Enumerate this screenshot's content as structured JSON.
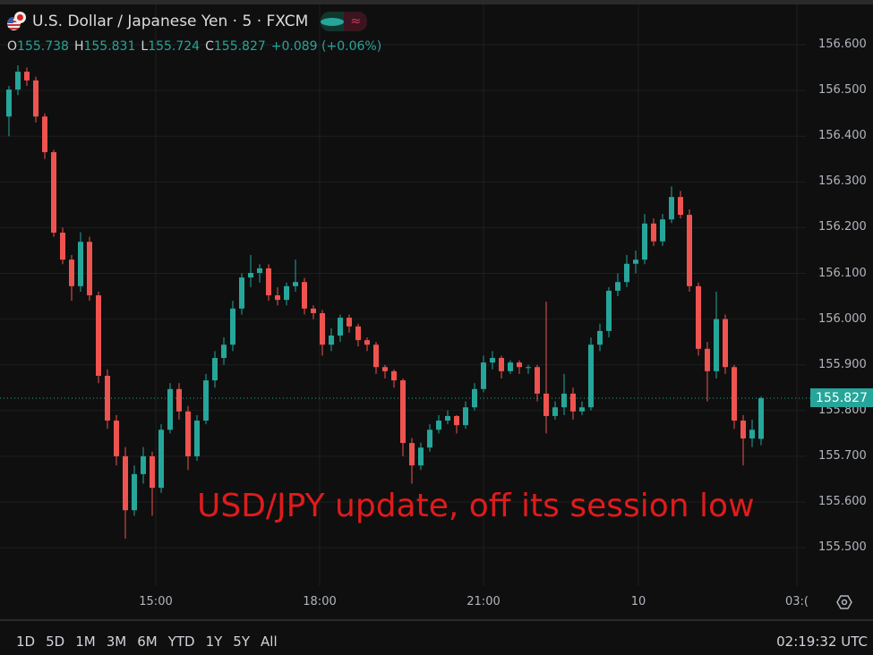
{
  "header": {
    "title": "U.S. Dollar / Japanese Yen · 5 · FXCM",
    "open_label": "O",
    "open": "155.738",
    "high_label": "H",
    "high": "155.831",
    "low_label": "L",
    "low": "155.724",
    "close_label": "C",
    "close": "155.827",
    "change": "+0.089 (+0.06%)"
  },
  "annotation": "USD/JPY update, off its session low",
  "last_price": "155.827",
  "colors": {
    "bull": "#26a69a",
    "bear": "#ef5350",
    "background": "#0f0f0f",
    "annotation": "#e01b1b"
  },
  "toolbar": {
    "ranges": [
      "1D",
      "5D",
      "1M",
      "3M",
      "6M",
      "YTD",
      "1Y",
      "5Y",
      "All"
    ],
    "clock": "02:19:32 UTC"
  },
  "icons": [
    "settings-gear-icon",
    "market-open-dot-icon",
    "data-delay-icon",
    "currency-flag-icon"
  ],
  "chart_data": {
    "type": "candlestick",
    "title": "U.S. Dollar / Japanese Yen · 5 · FXCM",
    "y_ticks": [
      "156.600",
      "156.500",
      "156.400",
      "156.300",
      "156.200",
      "156.100",
      "156.000",
      "155.900",
      "155.800",
      "155.700",
      "155.600",
      "155.500"
    ],
    "ylim": [
      155.47,
      156.63
    ],
    "x_ticks": [
      "15:00",
      "18:00",
      "21:00",
      "10",
      "03:("
    ],
    "grid": true,
    "candles_ohlc": [
      [
        156.443,
        156.51,
        156.4,
        156.502
      ],
      [
        156.502,
        156.555,
        156.49,
        156.541
      ],
      [
        156.541,
        156.55,
        156.51,
        156.522
      ],
      [
        156.522,
        156.53,
        156.43,
        156.443
      ],
      [
        156.443,
        156.45,
        156.35,
        156.365
      ],
      [
        156.365,
        156.37,
        156.18,
        156.189
      ],
      [
        156.189,
        156.2,
        156.12,
        156.13
      ],
      [
        156.13,
        156.14,
        156.04,
        156.072
      ],
      [
        156.072,
        156.19,
        156.06,
        156.169
      ],
      [
        156.169,
        156.18,
        156.04,
        156.052
      ],
      [
        156.052,
        156.06,
        155.86,
        155.876
      ],
      [
        155.876,
        155.89,
        155.76,
        155.778
      ],
      [
        155.778,
        155.79,
        155.68,
        155.7
      ],
      [
        155.7,
        155.72,
        155.52,
        155.582
      ],
      [
        155.582,
        155.68,
        155.57,
        155.661
      ],
      [
        155.661,
        155.72,
        155.64,
        155.7
      ],
      [
        155.7,
        155.71,
        155.57,
        155.631
      ],
      [
        155.631,
        155.77,
        155.62,
        155.758
      ],
      [
        155.758,
        155.86,
        155.75,
        155.847
      ],
      [
        155.847,
        155.86,
        155.78,
        155.798
      ],
      [
        155.798,
        155.81,
        155.67,
        155.7
      ],
      [
        155.7,
        155.79,
        155.69,
        155.778
      ],
      [
        155.778,
        155.88,
        155.77,
        155.866
      ],
      [
        155.866,
        155.93,
        155.85,
        155.915
      ],
      [
        155.915,
        155.96,
        155.9,
        155.944
      ],
      [
        155.944,
        156.04,
        155.93,
        156.023
      ],
      [
        156.023,
        156.1,
        156.01,
        156.091
      ],
      [
        156.091,
        156.14,
        156.07,
        156.101
      ],
      [
        156.101,
        156.12,
        156.08,
        156.111
      ],
      [
        156.111,
        156.12,
        156.04,
        156.052
      ],
      [
        156.052,
        156.07,
        156.03,
        156.042
      ],
      [
        156.042,
        156.08,
        156.03,
        156.072
      ],
      [
        156.072,
        156.13,
        156.06,
        156.081
      ],
      [
        156.081,
        156.09,
        156.01,
        156.023
      ],
      [
        156.023,
        156.03,
        156.0,
        156.013
      ],
      [
        156.013,
        156.02,
        155.92,
        155.944
      ],
      [
        155.944,
        155.98,
        155.93,
        155.964
      ],
      [
        155.964,
        156.01,
        155.95,
        156.003
      ],
      [
        156.003,
        156.01,
        155.97,
        155.984
      ],
      [
        155.984,
        155.99,
        155.94,
        155.954
      ],
      [
        155.954,
        155.96,
        155.93,
        155.944
      ],
      [
        155.944,
        155.95,
        155.88,
        155.895
      ],
      [
        155.895,
        155.9,
        155.87,
        155.886
      ],
      [
        155.886,
        155.89,
        155.85,
        155.866
      ],
      [
        155.866,
        155.87,
        155.7,
        155.729
      ],
      [
        155.729,
        155.74,
        155.64,
        155.68
      ],
      [
        155.68,
        155.73,
        155.67,
        155.719
      ],
      [
        155.719,
        155.77,
        155.71,
        155.758
      ],
      [
        155.758,
        155.79,
        155.75,
        155.778
      ],
      [
        155.778,
        155.8,
        155.77,
        155.788
      ],
      [
        155.788,
        155.79,
        155.75,
        155.768
      ],
      [
        155.768,
        155.82,
        155.76,
        155.807
      ],
      [
        155.807,
        155.86,
        155.8,
        155.847
      ],
      [
        155.847,
        155.92,
        155.84,
        155.905
      ],
      [
        155.905,
        155.93,
        155.89,
        155.915
      ],
      [
        155.915,
        155.92,
        155.87,
        155.886
      ],
      [
        155.886,
        155.91,
        155.88,
        155.905
      ],
      [
        155.905,
        155.91,
        155.88,
        155.895
      ],
      [
        155.895,
        155.9,
        155.88,
        155.895
      ],
      [
        155.895,
        155.9,
        155.82,
        155.837
      ],
      [
        155.837,
        156.038,
        155.75,
        155.788
      ],
      [
        155.788,
        155.82,
        155.78,
        155.807
      ],
      [
        155.807,
        155.88,
        155.79,
        155.837
      ],
      [
        155.837,
        155.85,
        155.78,
        155.798
      ],
      [
        155.798,
        155.82,
        155.79,
        155.807
      ],
      [
        155.807,
        155.96,
        155.8,
        155.944
      ],
      [
        155.944,
        155.99,
        155.93,
        155.974
      ],
      [
        155.974,
        156.07,
        155.96,
        156.062
      ],
      [
        156.062,
        156.1,
        156.05,
        156.081
      ],
      [
        156.081,
        156.14,
        156.07,
        156.121
      ],
      [
        156.121,
        156.15,
        156.1,
        156.13
      ],
      [
        156.13,
        156.23,
        156.12,
        156.209
      ],
      [
        156.209,
        156.22,
        156.16,
        156.17
      ],
      [
        156.17,
        156.23,
        156.16,
        156.218
      ],
      [
        156.218,
        156.29,
        156.21,
        156.267
      ],
      [
        156.267,
        156.28,
        156.22,
        156.228
      ],
      [
        156.228,
        156.24,
        156.06,
        156.072
      ],
      [
        156.072,
        156.08,
        155.92,
        155.935
      ],
      [
        155.935,
        155.95,
        155.82,
        155.886
      ],
      [
        155.886,
        156.06,
        155.87,
        156.0
      ],
      [
        156.0,
        156.01,
        155.88,
        155.895
      ],
      [
        155.895,
        155.9,
        155.76,
        155.778
      ],
      [
        155.778,
        155.79,
        155.68,
        155.739
      ],
      [
        155.739,
        155.78,
        155.72,
        155.758
      ],
      [
        155.738,
        155.831,
        155.724,
        155.827
      ]
    ]
  }
}
